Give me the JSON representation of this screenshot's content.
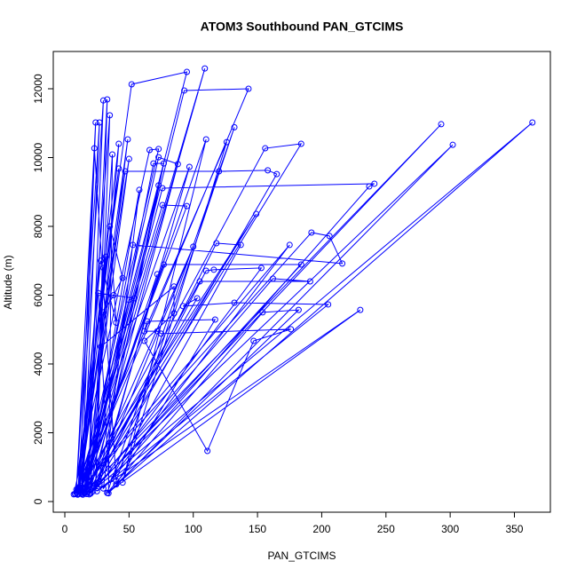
{
  "chart_data": {
    "type": "line",
    "markers": true,
    "color": "#0000ff",
    "title": "ATOM3 Southbound PAN_GTCIMS",
    "x_label": "PAN_GTCIMS",
    "y_label": "Altitude (m)",
    "xlim": [
      -9,
      378
    ],
    "ylim": [
      -310,
      13084
    ],
    "xticks": [
      0,
      50,
      100,
      150,
      200,
      250,
      300,
      350
    ],
    "yticks": [
      0,
      2000,
      4000,
      6000,
      8000,
      10000,
      12000
    ],
    "x": [
      8,
      52,
      95,
      12,
      109,
      15,
      93,
      143,
      10,
      30,
      18,
      33,
      24,
      35,
      13,
      24,
      9,
      27,
      14,
      293,
      20,
      364,
      33,
      132,
      40,
      23,
      11,
      49,
      16,
      110,
      45,
      126,
      7,
      66,
      73,
      12,
      156,
      184,
      17,
      302,
      34,
      37,
      20,
      42,
      10,
      50,
      15,
      73,
      88,
      19,
      69,
      77,
      25,
      97,
      8,
      42,
      12,
      47,
      120,
      158,
      165,
      22,
      73,
      14,
      76,
      241,
      237,
      30,
      58,
      18,
      149,
      9,
      76,
      95,
      12,
      192,
      206,
      216,
      53,
      16,
      100,
      23,
      118,
      137,
      36,
      175,
      11,
      32,
      30,
      13,
      77,
      184,
      20,
      110,
      116,
      153,
      27,
      72,
      15,
      105,
      191,
      162,
      34,
      26,
      54,
      50,
      17,
      103,
      92,
      132,
      205,
      25,
      230,
      33,
      154,
      182,
      40,
      117,
      64,
      62,
      72,
      75,
      176,
      147,
      111,
      62,
      85,
      85,
      28,
      30,
      38,
      45,
      35,
      40,
      28,
      10
    ],
    "y": [
      220,
      12130,
      12490,
      300,
      12590,
      250,
      11950,
      12000,
      200,
      11660,
      280,
      11690,
      500,
      11230,
      220,
      11020,
      350,
      11020,
      200,
      10970,
      260,
      11020,
      250,
      10880,
      600,
      10270,
      230,
      10530,
      400,
      10530,
      550,
      10450,
      210,
      10220,
      10250,
      260,
      10270,
      10400,
      220,
      10370,
      240,
      10090,
      480,
      10400,
      300,
      9960,
      350,
      10010,
      9810,
      210,
      9830,
      9830,
      400,
      9730,
      230,
      9680,
      450,
      9600,
      9600,
      9630,
      9520,
      300,
      9190,
      230,
      9110,
      9240,
      9160,
      380,
      9060,
      500,
      8360,
      260,
      8620,
      8590,
      330,
      7820,
      7720,
      6920,
      7460,
      250,
      7410,
      420,
      7510,
      7460,
      650,
      7460,
      300,
      7120,
      6790,
      380,
      6890,
      6890,
      230,
      6710,
      6740,
      6790,
      500,
      6610,
      280,
      6400,
      6400,
      6480,
      950,
      6060,
      5910,
      5860,
      350,
      5910,
      5680,
      5780,
      5730,
      300,
      5570,
      250,
      5500,
      5570,
      500,
      5290,
      5240,
      4950,
      4950,
      4880,
      5010,
      4670,
      1470,
      4670,
      5470,
      6250,
      4500,
      5500,
      6000,
      6500,
      8000,
      5200,
      7000,
      220
    ]
  }
}
